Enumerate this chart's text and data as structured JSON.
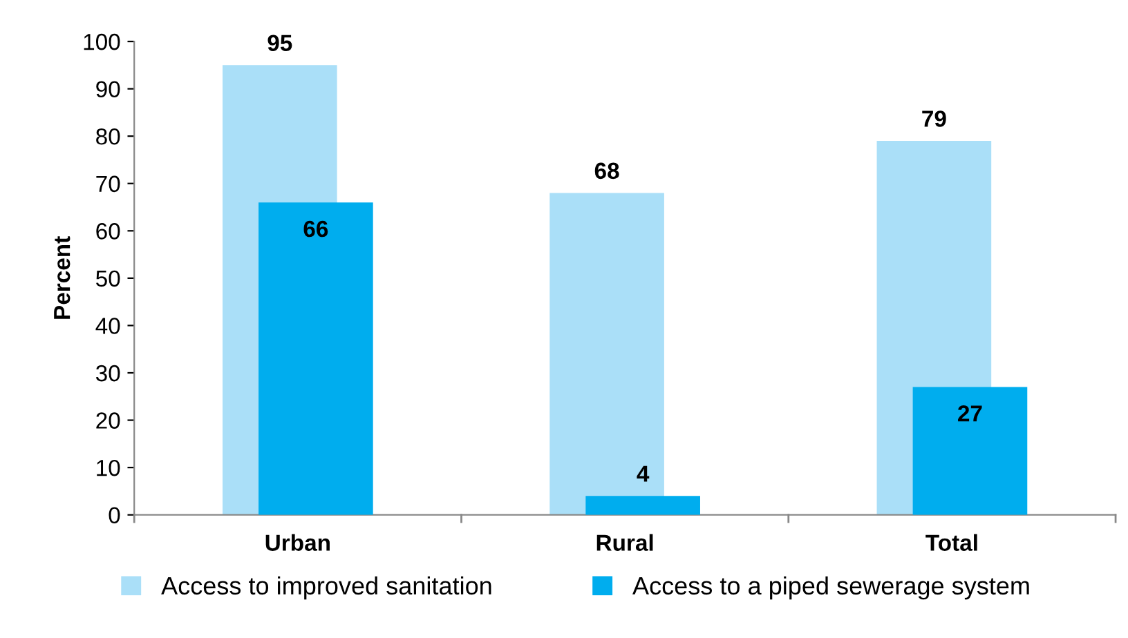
{
  "chart_data": {
    "type": "bar",
    "ylabel": "Percent",
    "categories": [
      "Urban",
      "Rural",
      "Total"
    ],
    "series": [
      {
        "name": "Access to improved sanitation",
        "color": "#aadff8",
        "values": [
          95,
          68,
          79
        ]
      },
      {
        "name": "Access to a piped sewerage system",
        "color": "#00adee",
        "values": [
          66,
          4,
          27
        ]
      }
    ],
    "ylim": [
      0,
      100
    ],
    "yticks": [
      0,
      10,
      20,
      30,
      40,
      50,
      60,
      70,
      80,
      90,
      100
    ],
    "data_labels": true,
    "legend": "bottom",
    "grid": false
  }
}
